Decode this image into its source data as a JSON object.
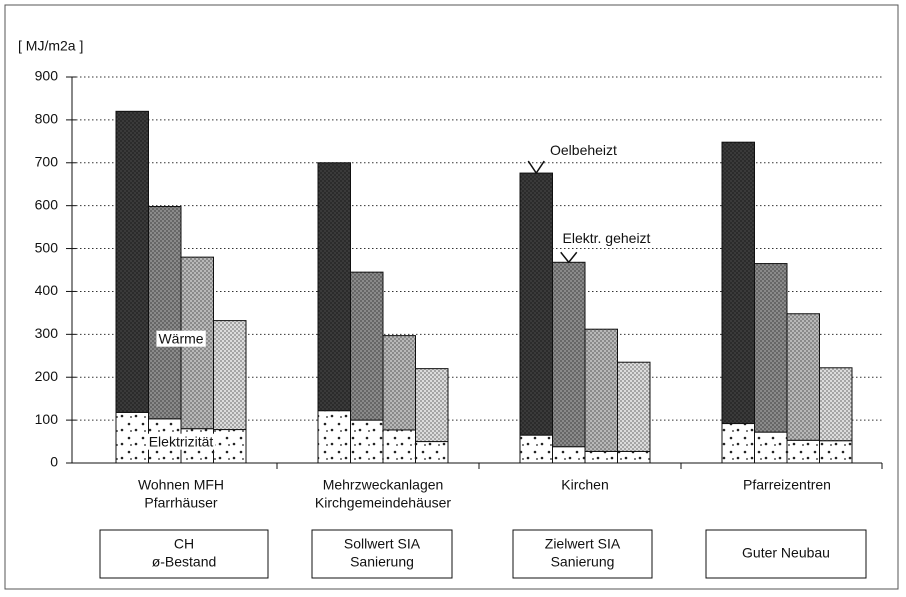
{
  "chart_data": {
    "type": "stacked_bar_groups",
    "y_axis_label": "[ MJ/m2a ]",
    "categories": [
      [
        "Wohnen MFH",
        "Pfarrhäuser"
      ],
      [
        "Mehrzweckanlagen",
        "Kirchgemeindehäuser"
      ],
      [
        "Kirchen"
      ],
      [
        "Pfarreizentren"
      ]
    ],
    "bar_labels": [
      [
        "CH",
        "ø-Bestand"
      ],
      [
        "Sollwert SIA",
        "Sanierung"
      ],
      [
        "Zielwert SIA",
        "Sanierung"
      ],
      [
        "Guter Neubau"
      ]
    ],
    "series": [
      {
        "name": "Elektrizität",
        "color": "#ffffff",
        "values": [
          [
            118,
            103,
            80,
            78
          ],
          [
            122,
            100,
            77,
            50
          ],
          [
            65,
            38,
            27,
            27
          ],
          [
            92,
            72,
            53,
            52
          ]
        ]
      },
      {
        "name": "Wärme",
        "colors": [
          "#3a3a3a",
          "#8a8a8a",
          "#b8b8b8",
          "#dcdcdc"
        ],
        "values": [
          [
            702,
            495,
            400,
            254
          ],
          [
            578,
            345,
            220,
            170
          ],
          [
            611,
            430,
            285,
            208
          ],
          [
            656,
            393,
            295,
            170
          ]
        ]
      }
    ],
    "annotations": [
      "Oelbeheizt",
      "Elektr. geheizt"
    ],
    "ylim": [
      0,
      900
    ],
    "yticks": [
      0,
      100,
      200,
      300,
      400,
      500,
      600,
      700,
      800,
      900
    ],
    "grid": true
  }
}
